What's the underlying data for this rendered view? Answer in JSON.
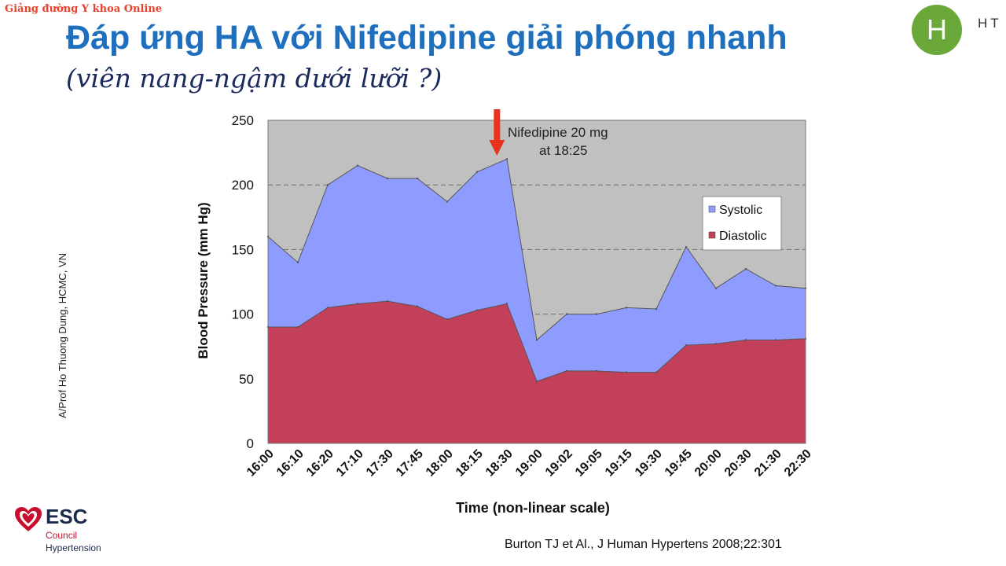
{
  "watermark": "Giảng đường Y khoa Online",
  "header": {
    "title": "Đáp ứng HA với Nifedipine giải phóng nhanh",
    "subtitle": "(viên nang-ngậm dưới lưỡi ?)"
  },
  "logo": {
    "letter": "H",
    "text": "HT"
  },
  "author": "A/Prof Ho Thuong Dung, HCMC, VN",
  "esc": {
    "word": "ESC",
    "line1": "Council",
    "line2": "Hypertension",
    "icon": "heart-icon"
  },
  "citation": "Burton TJ et Al., J Human Hypertens 2008;22:301",
  "chart_data": {
    "type": "area",
    "title": "",
    "xlabel": "Time (non-linear scale)",
    "ylabel": "Blood Pressure (mm Hg)",
    "ylim": [
      0,
      250
    ],
    "yticks": [
      0,
      50,
      100,
      150,
      200,
      250
    ],
    "grid": "dashed horizontal",
    "background_color": "#c0c0c0",
    "x": [
      "16:00",
      "16:10",
      "16:20",
      "17:10",
      "17:30",
      "17:45",
      "18:00",
      "18:15",
      "18:30",
      "19:00",
      "19:02",
      "19:05",
      "19:15",
      "19:30",
      "19:45",
      "20:00",
      "20:30",
      "21:30",
      "22:30"
    ],
    "series": [
      {
        "name": "Systolic",
        "color": "#8f9cff",
        "values": [
          160,
          140,
          200,
          215,
          205,
          205,
          187,
          210,
          220,
          80,
          100,
          100,
          105,
          104,
          152,
          120,
          135,
          122,
          120
        ]
      },
      {
        "name": "Diastolic",
        "color": "#c2405a",
        "values": [
          90,
          90,
          105,
          108,
          110,
          106,
          96,
          103,
          108,
          48,
          56,
          56,
          55,
          55,
          76,
          77,
          80,
          80,
          81
        ]
      }
    ],
    "legend": {
      "position": "top-right"
    },
    "annotation": {
      "line1": "Nifedipine 20 mg",
      "line2": "at 18:25",
      "at_x": "18:25",
      "arrow_color": "#e8321e"
    }
  }
}
